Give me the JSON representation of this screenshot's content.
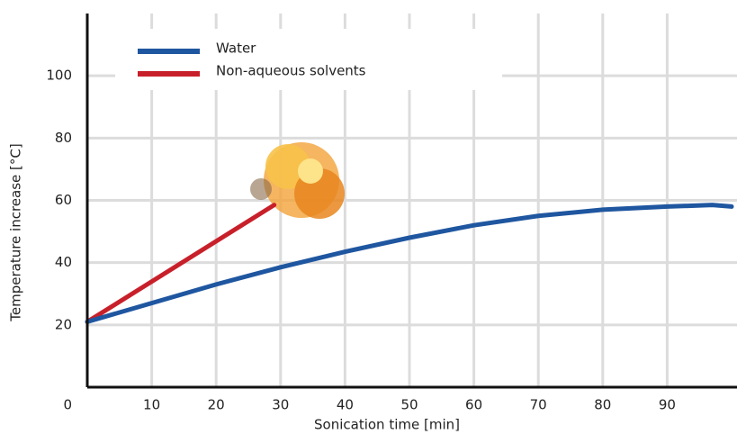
{
  "chart_data": {
    "type": "line",
    "x_label": "Sonication time [min]",
    "y_label": "Temperature increase [°C]",
    "xlim": [
      0,
      100
    ],
    "ylim": [
      0,
      120
    ],
    "xticks": [
      10,
      20,
      30,
      40,
      50,
      60,
      70,
      80,
      90
    ],
    "yticks": [
      0,
      20,
      40,
      60,
      80,
      100
    ],
    "grid": true,
    "legend": "upper left",
    "series": [
      {
        "name": "Water",
        "color": "#1f56a0",
        "x": [
          0,
          10,
          20,
          30,
          40,
          50,
          60,
          70,
          80,
          90,
          97,
          100
        ],
        "values": [
          21,
          27,
          33,
          38.5,
          43.5,
          48,
          52,
          55,
          57,
          58,
          58.5,
          58
        ]
      },
      {
        "name": "Non-aqueous solvents",
        "color": "#c8202a",
        "x": [
          0,
          29
        ],
        "values": [
          21,
          58.5
        ]
      }
    ]
  }
}
